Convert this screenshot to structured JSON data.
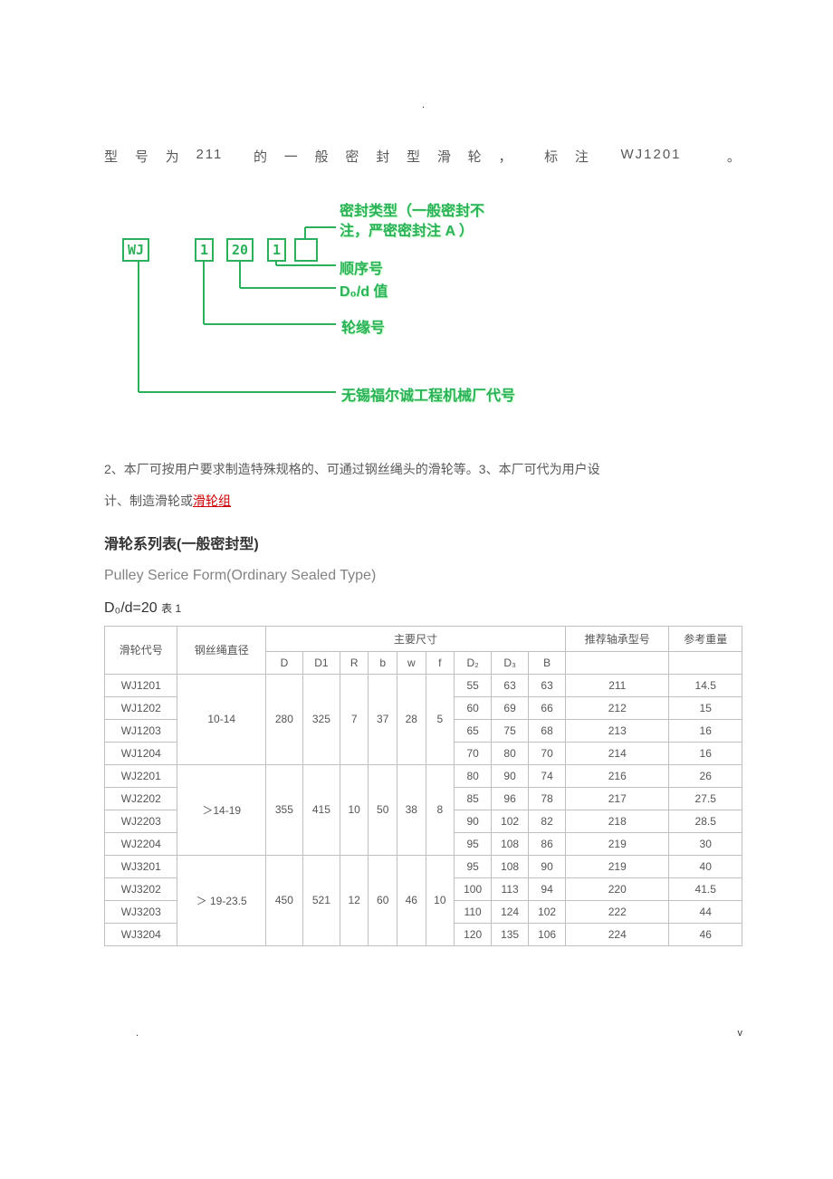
{
  "top_dot": ".",
  "line1_parts": [
    "型",
    "号",
    "为",
    "211",
    "",
    "的",
    "一",
    "般",
    "密",
    "封",
    "型",
    "滑",
    "轮",
    "，",
    "",
    "标",
    "注",
    "",
    "WJ1201",
    "",
    "",
    "。"
  ],
  "diagram": {
    "boxes": {
      "wj": "WJ",
      "b1": "1",
      "b20": "20",
      "b1b": "1",
      "be": ""
    },
    "labels": {
      "seal1": "密封类型（一般密封不",
      "seal2": "注，严密密封注 A ）",
      "seq": "顺序号",
      "d0d": "D₀/d 值",
      "flange": "轮缘号",
      "factory": "无锡福尔诚工程机械厂代号"
    },
    "line_color": "#2bb15a"
  },
  "para_a": "2、本厂可按用户要求制造特殊规格的、可通过钢丝绳头的滑轮等。3、本厂可代为用户设",
  "para_b_prefix": "计、制造滑轮或",
  "para_b_link": "滑轮组",
  "heading": "滑轮系列表(一般密封型)",
  "sub_heading": "Pulley Serice Form(Ordinary Sealed Type)",
  "formula": "D₀/d=20",
  "formula_suffix": "表 1",
  "table": {
    "header": {
      "col_code": "滑轮代号",
      "col_rope": "钢丝绳直径",
      "col_main": "主要尺寸",
      "col_bearing": "推荐轴承型号",
      "col_weight": "参考重量",
      "dims": [
        "D",
        "D1",
        "R",
        "b",
        "w",
        "f",
        "D₂",
        "D₃",
        "B"
      ]
    },
    "groups": [
      {
        "rope": "10-14",
        "D": "280",
        "D1": "325",
        "R": "7",
        "b": "37",
        "w": "28",
        "f": "5",
        "rows": [
          {
            "code": "WJ1201",
            "D2": "55",
            "D3": "63",
            "B": "63",
            "bearing": "211",
            "wt": "14.5"
          },
          {
            "code": "WJ1202",
            "D2": "60",
            "D3": "69",
            "B": "66",
            "bearing": "212",
            "wt": "15"
          },
          {
            "code": "WJ1203",
            "D2": "65",
            "D3": "75",
            "B": "68",
            "bearing": "213",
            "wt": "16"
          },
          {
            "code": "WJ1204",
            "D2": "70",
            "D3": "80",
            "B": "70",
            "bearing": "214",
            "wt": "16"
          }
        ]
      },
      {
        "rope": "＞14-19",
        "D": "355",
        "D1": "415",
        "R": "10",
        "b": "50",
        "w": "38",
        "f": "8",
        "rows": [
          {
            "code": "WJ2201",
            "D2": "80",
            "D3": "90",
            "B": "74",
            "bearing": "216",
            "wt": "26"
          },
          {
            "code": "WJ2202",
            "D2": "85",
            "D3": "96",
            "B": "78",
            "bearing": "217",
            "wt": "27.5"
          },
          {
            "code": "WJ2203",
            "D2": "90",
            "D3": "102",
            "B": "82",
            "bearing": "218",
            "wt": "28.5"
          },
          {
            "code": "WJ2204",
            "D2": "95",
            "D3": "108",
            "B": "86",
            "bearing": "219",
            "wt": "30"
          }
        ]
      },
      {
        "rope": "＞ 19-23.5",
        "D": "450",
        "D1": "521",
        "R": "12",
        "b": "60",
        "w": "46",
        "f": "10",
        "rows": [
          {
            "code": "WJ3201",
            "D2": "95",
            "D3": "108",
            "B": "90",
            "bearing": "219",
            "wt": "40"
          },
          {
            "code": "WJ3202",
            "D2": "100",
            "D3": "113",
            "B": "94",
            "bearing": "220",
            "wt": "41.5"
          },
          {
            "code": "WJ3203",
            "D2": "110",
            "D3": "124",
            "B": "102",
            "bearing": "222",
            "wt": "44"
          },
          {
            "code": "WJ3204",
            "D2": "120",
            "D3": "135",
            "B": "106",
            "bearing": "224",
            "wt": "46"
          }
        ]
      }
    ]
  },
  "footer_left": ".",
  "footer_right": "v"
}
